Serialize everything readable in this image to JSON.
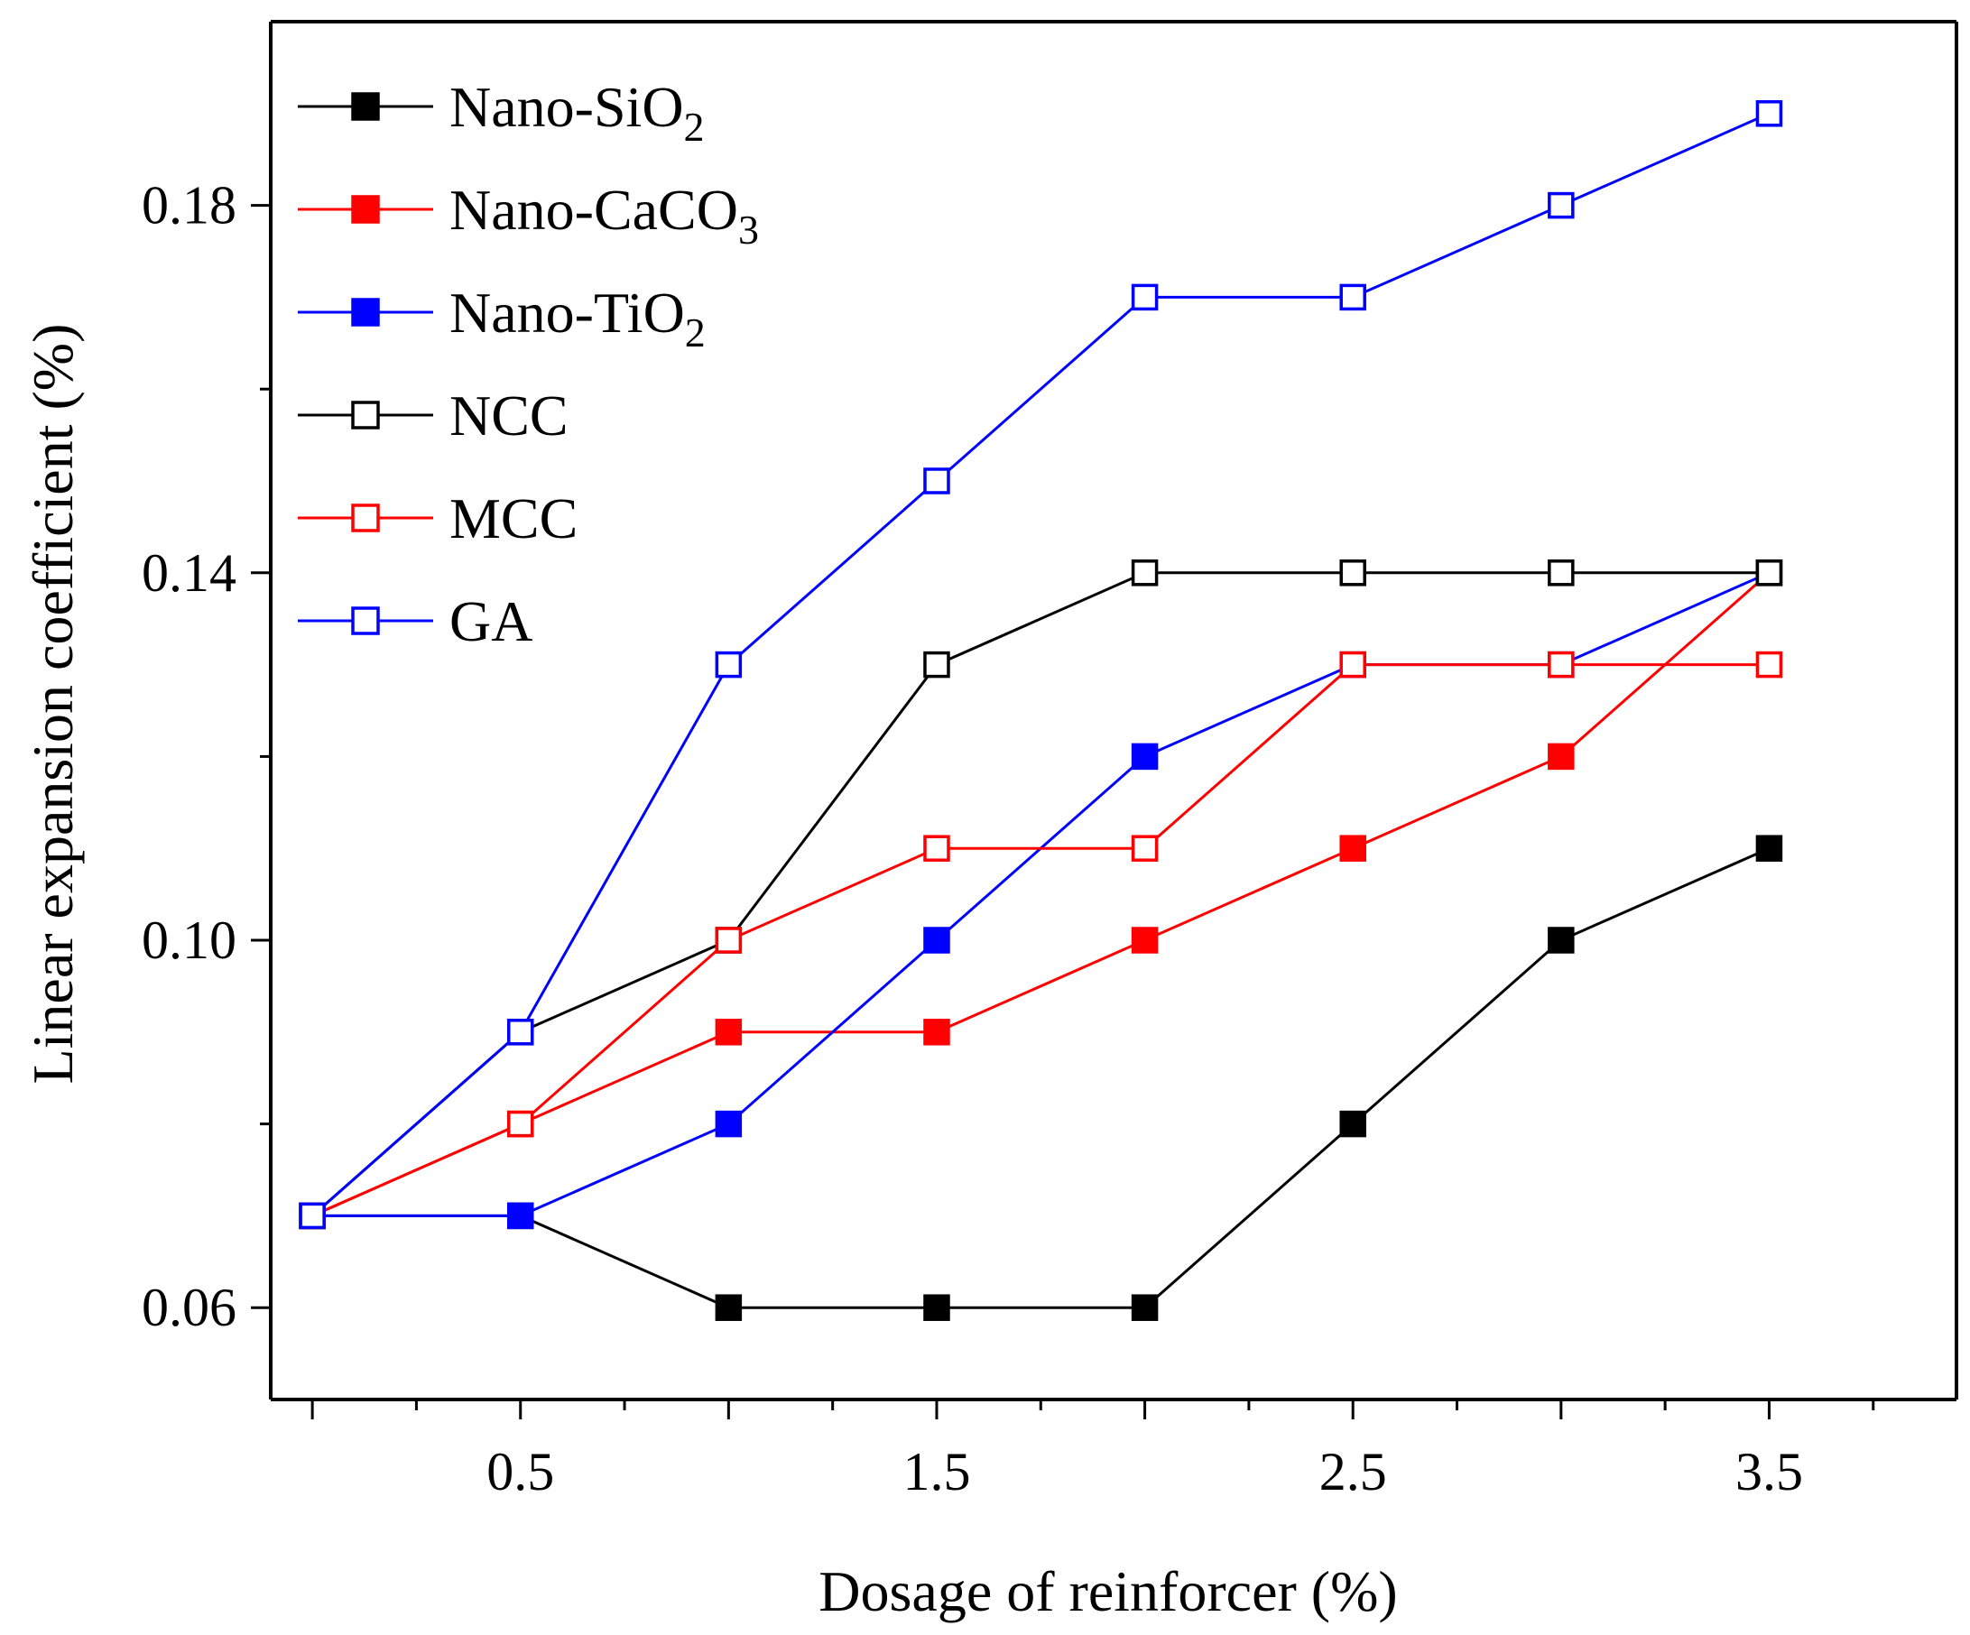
{
  "chart_data": {
    "type": "line",
    "title": "",
    "xlabel": "Dosage of reinforcer (%)",
    "ylabel": "Linear expansion coefficient (%)",
    "xlim": [
      -0.1,
      3.95
    ],
    "ylim": [
      0.05,
      0.2
    ],
    "x_ticks": [
      0.5,
      1.5,
      2.5,
      3.5
    ],
    "x_tick_labels": [
      "0.5",
      "1.5",
      "2.5",
      "3.5"
    ],
    "y_ticks": [
      0.06,
      0.1,
      0.14,
      0.18
    ],
    "y_tick_labels": [
      "0.06",
      "0.10",
      "0.14",
      "0.18"
    ],
    "x": [
      0,
      0.5,
      1.0,
      1.5,
      2.0,
      2.5,
      3.0,
      3.5
    ],
    "legend_position": "top-left",
    "series": [
      {
        "name": "Nano-SiO",
        "subscript": "2",
        "color": "#000000",
        "marker": "filled-square",
        "values": [
          0.07,
          0.07,
          0.06,
          0.06,
          0.06,
          0.08,
          0.1,
          0.11
        ]
      },
      {
        "name": "Nano-CaCO",
        "subscript": "3",
        "color": "#ff0000",
        "marker": "filled-square",
        "values": [
          0.07,
          0.08,
          0.09,
          0.09,
          0.1,
          0.11,
          0.12,
          0.14
        ]
      },
      {
        "name": "Nano-TiO",
        "subscript": "2",
        "color": "#0000ff",
        "marker": "filled-square",
        "values": [
          0.07,
          0.07,
          0.08,
          0.1,
          0.12,
          0.13,
          0.13,
          0.14
        ]
      },
      {
        "name": "NCC",
        "subscript": "",
        "color": "#000000",
        "marker": "open-square",
        "values": [
          0.07,
          0.09,
          0.1,
          0.13,
          0.14,
          0.14,
          0.14,
          0.14
        ]
      },
      {
        "name": "MCC",
        "subscript": "",
        "color": "#ff0000",
        "marker": "open-square",
        "values": [
          0.07,
          0.08,
          0.1,
          0.11,
          0.11,
          0.13,
          0.13,
          0.13
        ]
      },
      {
        "name": "GA",
        "subscript": "",
        "color": "#0000ff",
        "marker": "open-square",
        "values": [
          0.07,
          0.09,
          0.13,
          0.15,
          0.17,
          0.17,
          0.18,
          0.19
        ]
      }
    ]
  }
}
